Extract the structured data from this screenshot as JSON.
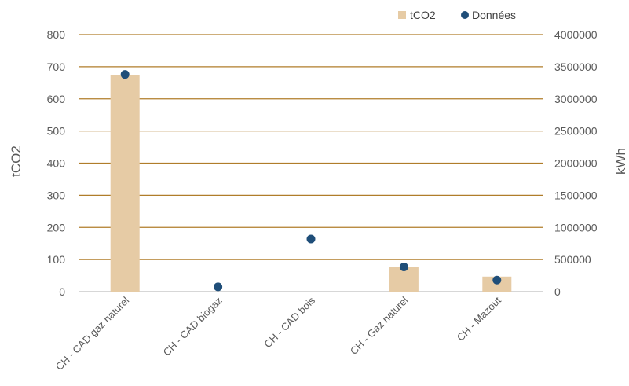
{
  "chart_data": {
    "type": "bar",
    "categories": [
      "CH - CAD gaz naturel",
      "CH - CAD biogaz",
      "CH - CAD bois",
      "CH - Gaz naturel",
      "CH - Mazout"
    ],
    "series": [
      {
        "name": "tCO2",
        "type": "bar",
        "axis": "left",
        "color": "#e6cba5",
        "values": [
          673,
          0,
          0,
          77,
          47
        ]
      },
      {
        "name": "Données",
        "type": "scatter",
        "axis": "right",
        "color": "#1f4e79",
        "values": [
          3380000,
          75000,
          820000,
          385000,
          180000
        ]
      }
    ],
    "title": "",
    "ylabel": "tCO2",
    "y2label": "kWh",
    "ylim": [
      0,
      800
    ],
    "y2lim": [
      0,
      4000000
    ],
    "yticks": [
      "0",
      "100",
      "200",
      "300",
      "400",
      "500",
      "600",
      "700",
      "800"
    ],
    "y2ticks": [
      "0",
      "500000",
      "1000000",
      "1500000",
      "2000000",
      "2500000",
      "3000000",
      "3500000",
      "4000000"
    ],
    "grid": true,
    "grid_color": "#b07d2a",
    "legend_position": "top-right"
  }
}
